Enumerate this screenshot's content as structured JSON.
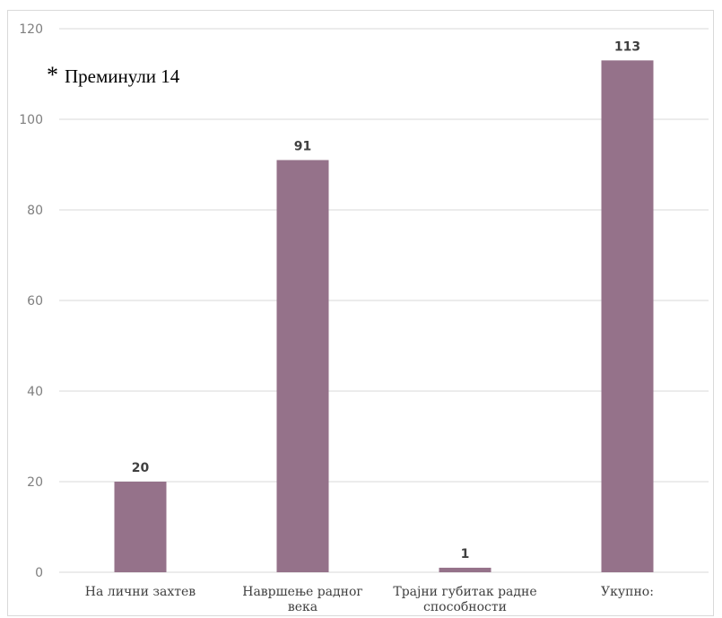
{
  "chart_data": {
    "type": "bar",
    "categories": [
      [
        "На лични захтев"
      ],
      [
        "Навршење радног",
        "века"
      ],
      [
        "Трајни губитак радне",
        "способности"
      ],
      [
        "Укупно:"
      ]
    ],
    "values": [
      20,
      91,
      1,
      113
    ],
    "data_labels": [
      "20",
      "91",
      "1",
      "113"
    ],
    "ylim": [
      0,
      120
    ],
    "yticks": [
      0,
      20,
      40,
      60,
      80,
      100,
      120
    ],
    "grid": true,
    "bar_color": "#95728a",
    "annotation": {
      "marker": "*",
      "text": "Преминули 14"
    }
  }
}
